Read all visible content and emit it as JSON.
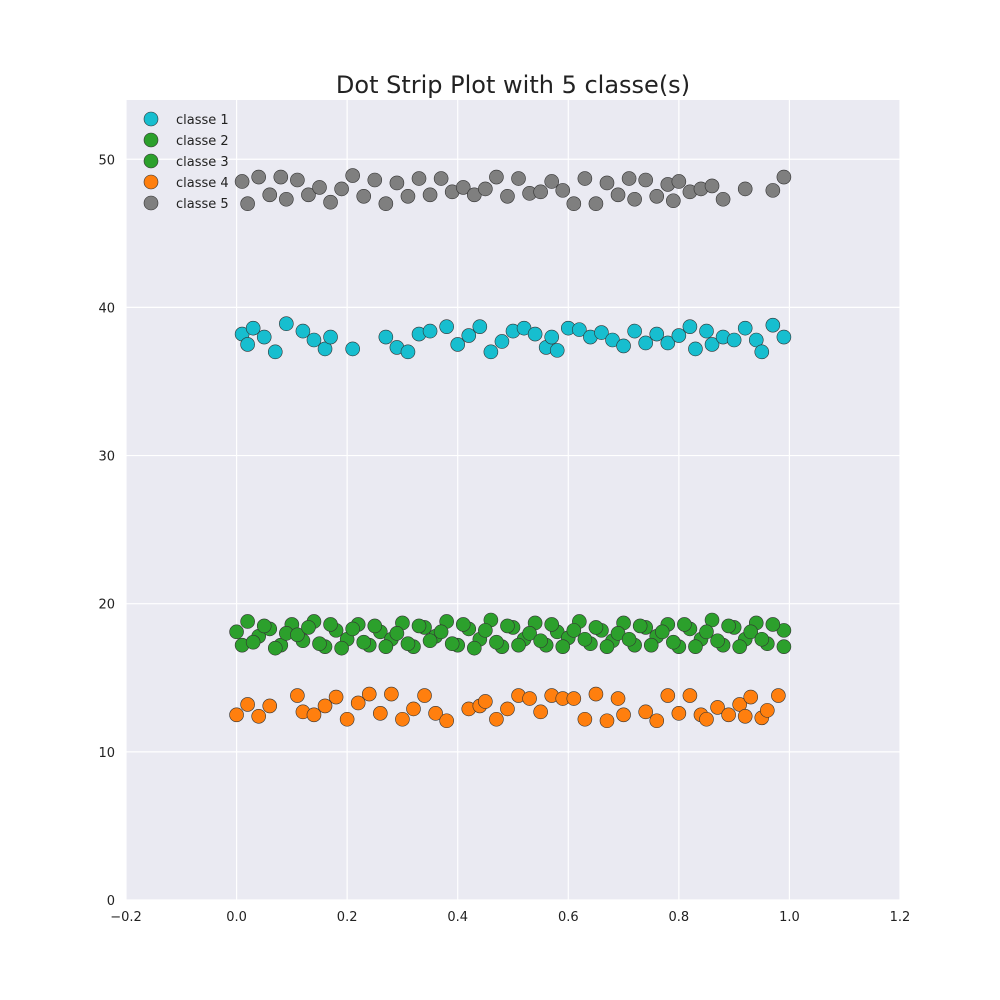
{
  "chart_data": {
    "type": "scatter",
    "title": "Dot Strip Plot with 5 classe(s)",
    "xlabel": "",
    "ylabel": "",
    "xlim": [
      -0.2,
      1.2
    ],
    "ylim": [
      0,
      54
    ],
    "x_ticks": [
      -0.2,
      0.0,
      0.2,
      0.4,
      0.6,
      0.8,
      1.0,
      1.2
    ],
    "x_tick_labels": [
      "−0.2",
      "0.0",
      "0.2",
      "0.4",
      "0.6",
      "0.8",
      "1.0",
      "1.2"
    ],
    "y_ticks": [
      0,
      10,
      20,
      30,
      40,
      50
    ],
    "y_tick_labels": [
      "0",
      "10",
      "20",
      "30",
      "40",
      "50"
    ],
    "grid": true,
    "legend_position": "top-left",
    "background": "#eaeaf2",
    "series": [
      {
        "name": "classe 1",
        "color": "#17becf",
        "points": [
          [
            0.01,
            38.2
          ],
          [
            0.02,
            37.5
          ],
          [
            0.03,
            38.6
          ],
          [
            0.05,
            38.0
          ],
          [
            0.07,
            37.0
          ],
          [
            0.09,
            38.9
          ],
          [
            0.12,
            38.4
          ],
          [
            0.14,
            37.8
          ],
          [
            0.16,
            37.2
          ],
          [
            0.17,
            38.0
          ],
          [
            0.21,
            37.2
          ],
          [
            0.27,
            38.0
          ],
          [
            0.29,
            37.3
          ],
          [
            0.31,
            37.0
          ],
          [
            0.33,
            38.2
          ],
          [
            0.35,
            38.4
          ],
          [
            0.38,
            38.7
          ],
          [
            0.4,
            37.5
          ],
          [
            0.42,
            38.1
          ],
          [
            0.44,
            38.7
          ],
          [
            0.46,
            37.0
          ],
          [
            0.48,
            37.7
          ],
          [
            0.5,
            38.4
          ],
          [
            0.52,
            38.6
          ],
          [
            0.54,
            38.2
          ],
          [
            0.56,
            37.3
          ],
          [
            0.57,
            38.0
          ],
          [
            0.58,
            37.1
          ],
          [
            0.6,
            38.6
          ],
          [
            0.62,
            38.5
          ],
          [
            0.64,
            38.0
          ],
          [
            0.66,
            38.3
          ],
          [
            0.68,
            37.8
          ],
          [
            0.7,
            37.4
          ],
          [
            0.72,
            38.4
          ],
          [
            0.74,
            37.6
          ],
          [
            0.76,
            38.2
          ],
          [
            0.78,
            37.6
          ],
          [
            0.8,
            38.1
          ],
          [
            0.82,
            38.7
          ],
          [
            0.83,
            37.2
          ],
          [
            0.85,
            38.4
          ],
          [
            0.86,
            37.5
          ],
          [
            0.88,
            38.0
          ],
          [
            0.9,
            37.8
          ],
          [
            0.92,
            38.6
          ],
          [
            0.94,
            37.8
          ],
          [
            0.95,
            37.0
          ],
          [
            0.97,
            38.8
          ],
          [
            0.99,
            38.0
          ]
        ]
      },
      {
        "name": "classe 2",
        "color": "#2ca02c",
        "points": [
          [
            0.01,
            17.2
          ],
          [
            0.02,
            18.8
          ],
          [
            0.04,
            17.8
          ],
          [
            0.06,
            18.3
          ],
          [
            0.08,
            17.2
          ],
          [
            0.1,
            18.6
          ],
          [
            0.12,
            17.5
          ],
          [
            0.14,
            18.8
          ],
          [
            0.16,
            17.1
          ],
          [
            0.18,
            18.2
          ],
          [
            0.2,
            17.6
          ],
          [
            0.22,
            18.6
          ],
          [
            0.24,
            17.2
          ],
          [
            0.26,
            18.1
          ],
          [
            0.28,
            17.6
          ],
          [
            0.3,
            18.7
          ],
          [
            0.32,
            17.1
          ],
          [
            0.34,
            18.4
          ],
          [
            0.36,
            17.8
          ],
          [
            0.38,
            18.8
          ],
          [
            0.4,
            17.2
          ],
          [
            0.42,
            18.3
          ],
          [
            0.44,
            17.6
          ],
          [
            0.46,
            18.9
          ],
          [
            0.48,
            17.1
          ],
          [
            0.5,
            18.4
          ],
          [
            0.52,
            17.6
          ],
          [
            0.54,
            18.7
          ],
          [
            0.56,
            17.2
          ],
          [
            0.58,
            18.1
          ],
          [
            0.6,
            17.7
          ],
          [
            0.62,
            18.8
          ],
          [
            0.64,
            17.3
          ],
          [
            0.66,
            18.2
          ],
          [
            0.68,
            17.5
          ],
          [
            0.7,
            18.7
          ],
          [
            0.72,
            17.2
          ],
          [
            0.74,
            18.4
          ],
          [
            0.76,
            17.8
          ],
          [
            0.78,
            18.6
          ],
          [
            0.8,
            17.1
          ],
          [
            0.82,
            18.3
          ],
          [
            0.84,
            17.6
          ],
          [
            0.86,
            18.9
          ],
          [
            0.88,
            17.2
          ],
          [
            0.9,
            18.4
          ],
          [
            0.92,
            17.6
          ],
          [
            0.94,
            18.7
          ],
          [
            0.96,
            17.3
          ],
          [
            0.99,
            18.2
          ]
        ]
      },
      {
        "name": "classe 3",
        "color": "#2ca02c",
        "points": [
          [
            0.0,
            18.1
          ],
          [
            0.03,
            17.4
          ],
          [
            0.05,
            18.5
          ],
          [
            0.07,
            17.0
          ],
          [
            0.09,
            18.0
          ],
          [
            0.11,
            17.9
          ],
          [
            0.13,
            18.4
          ],
          [
            0.15,
            17.3
          ],
          [
            0.17,
            18.6
          ],
          [
            0.19,
            17.0
          ],
          [
            0.21,
            18.3
          ],
          [
            0.23,
            17.4
          ],
          [
            0.25,
            18.5
          ],
          [
            0.27,
            17.1
          ],
          [
            0.29,
            18.0
          ],
          [
            0.31,
            17.3
          ],
          [
            0.33,
            18.5
          ],
          [
            0.35,
            17.5
          ],
          [
            0.37,
            18.1
          ],
          [
            0.39,
            17.3
          ],
          [
            0.41,
            18.6
          ],
          [
            0.43,
            17.0
          ],
          [
            0.45,
            18.2
          ],
          [
            0.47,
            17.4
          ],
          [
            0.49,
            18.5
          ],
          [
            0.51,
            17.2
          ],
          [
            0.53,
            18.0
          ],
          [
            0.55,
            17.5
          ],
          [
            0.57,
            18.6
          ],
          [
            0.59,
            17.1
          ],
          [
            0.61,
            18.2
          ],
          [
            0.63,
            17.6
          ],
          [
            0.65,
            18.4
          ],
          [
            0.67,
            17.1
          ],
          [
            0.69,
            18.0
          ],
          [
            0.71,
            17.6
          ],
          [
            0.73,
            18.5
          ],
          [
            0.75,
            17.2
          ],
          [
            0.77,
            18.1
          ],
          [
            0.79,
            17.4
          ],
          [
            0.81,
            18.6
          ],
          [
            0.83,
            17.1
          ],
          [
            0.85,
            18.1
          ],
          [
            0.87,
            17.5
          ],
          [
            0.89,
            18.5
          ],
          [
            0.91,
            17.1
          ],
          [
            0.93,
            18.1
          ],
          [
            0.95,
            17.6
          ],
          [
            0.97,
            18.6
          ],
          [
            0.99,
            17.1
          ]
        ]
      },
      {
        "name": "classe 4",
        "color": "#ff7f0e",
        "points": [
          [
            0.0,
            12.5
          ],
          [
            0.02,
            13.2
          ],
          [
            0.04,
            12.4
          ],
          [
            0.06,
            13.1
          ],
          [
            0.11,
            13.8
          ],
          [
            0.12,
            12.7
          ],
          [
            0.14,
            12.5
          ],
          [
            0.16,
            13.1
          ],
          [
            0.18,
            13.7
          ],
          [
            0.2,
            12.2
          ],
          [
            0.22,
            13.3
          ],
          [
            0.24,
            13.9
          ],
          [
            0.26,
            12.6
          ],
          [
            0.28,
            13.9
          ],
          [
            0.3,
            12.2
          ],
          [
            0.32,
            12.9
          ],
          [
            0.34,
            13.8
          ],
          [
            0.36,
            12.6
          ],
          [
            0.38,
            12.1
          ],
          [
            0.42,
            12.9
          ],
          [
            0.44,
            13.1
          ],
          [
            0.45,
            13.4
          ],
          [
            0.47,
            12.2
          ],
          [
            0.49,
            12.9
          ],
          [
            0.51,
            13.8
          ],
          [
            0.53,
            13.6
          ],
          [
            0.55,
            12.7
          ],
          [
            0.57,
            13.8
          ],
          [
            0.59,
            13.6
          ],
          [
            0.61,
            13.6
          ],
          [
            0.63,
            12.2
          ],
          [
            0.65,
            13.9
          ],
          [
            0.67,
            12.1
          ],
          [
            0.69,
            13.6
          ],
          [
            0.7,
            12.5
          ],
          [
            0.74,
            12.7
          ],
          [
            0.76,
            12.1
          ],
          [
            0.78,
            13.8
          ],
          [
            0.8,
            12.6
          ],
          [
            0.82,
            13.8
          ],
          [
            0.84,
            12.5
          ],
          [
            0.85,
            12.2
          ],
          [
            0.87,
            13.0
          ],
          [
            0.89,
            12.5
          ],
          [
            0.91,
            13.2
          ],
          [
            0.92,
            12.4
          ],
          [
            0.93,
            13.7
          ],
          [
            0.95,
            12.3
          ],
          [
            0.96,
            12.8
          ],
          [
            0.98,
            13.8
          ]
        ]
      },
      {
        "name": "classe 5",
        "color": "#7f7f7f",
        "points": [
          [
            0.01,
            48.5
          ],
          [
            0.02,
            47.0
          ],
          [
            0.04,
            48.8
          ],
          [
            0.06,
            47.6
          ],
          [
            0.08,
            48.8
          ],
          [
            0.09,
            47.3
          ],
          [
            0.11,
            48.6
          ],
          [
            0.13,
            47.6
          ],
          [
            0.15,
            48.1
          ],
          [
            0.17,
            47.1
          ],
          [
            0.19,
            48.0
          ],
          [
            0.21,
            48.9
          ],
          [
            0.23,
            47.5
          ],
          [
            0.25,
            48.6
          ],
          [
            0.27,
            47.0
          ],
          [
            0.29,
            48.4
          ],
          [
            0.31,
            47.5
          ],
          [
            0.33,
            48.7
          ],
          [
            0.35,
            47.6
          ],
          [
            0.37,
            48.7
          ],
          [
            0.39,
            47.8
          ],
          [
            0.41,
            48.1
          ],
          [
            0.43,
            47.6
          ],
          [
            0.45,
            48.0
          ],
          [
            0.47,
            48.8
          ],
          [
            0.49,
            47.5
          ],
          [
            0.51,
            48.7
          ],
          [
            0.53,
            47.7
          ],
          [
            0.55,
            47.8
          ],
          [
            0.57,
            48.5
          ],
          [
            0.59,
            47.9
          ],
          [
            0.61,
            47.0
          ],
          [
            0.63,
            48.7
          ],
          [
            0.65,
            47.0
          ],
          [
            0.67,
            48.4
          ],
          [
            0.69,
            47.6
          ],
          [
            0.71,
            48.7
          ],
          [
            0.72,
            47.3
          ],
          [
            0.74,
            48.6
          ],
          [
            0.76,
            47.5
          ],
          [
            0.78,
            48.3
          ],
          [
            0.79,
            47.2
          ],
          [
            0.8,
            48.5
          ],
          [
            0.82,
            47.8
          ],
          [
            0.84,
            48.0
          ],
          [
            0.86,
            48.2
          ],
          [
            0.88,
            47.3
          ],
          [
            0.92,
            48.0
          ],
          [
            0.97,
            47.9
          ],
          [
            0.99,
            48.8
          ]
        ]
      }
    ]
  }
}
